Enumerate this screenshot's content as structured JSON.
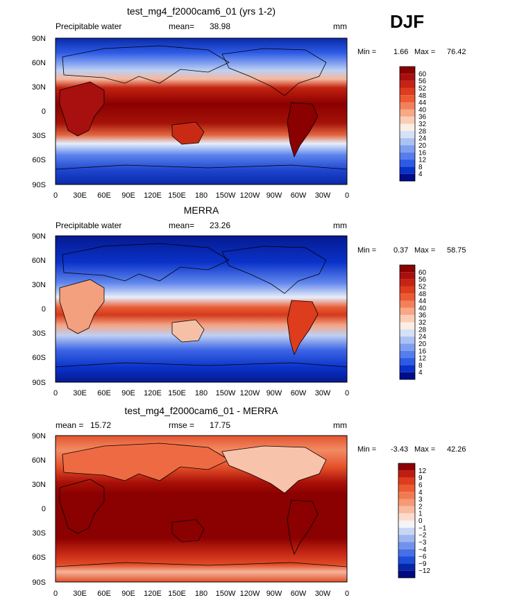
{
  "season_label": "DJF",
  "chart_data": [
    {
      "type": "heatmap",
      "title": "test_mg4_f2000cam6_01 (yrs 1-2)",
      "variable_label": "Precipitable water",
      "stat_label": "mean=",
      "stat_value": "38.98",
      "units": "mm",
      "min_label": "Min =",
      "min_value": "1.66",
      "max_label": "Max =",
      "max_value": "76.42",
      "y_ticks": [
        "90N",
        "60N",
        "30N",
        "0",
        "30S",
        "60S",
        "90S"
      ],
      "x_ticks": [
        "0",
        "30E",
        "60E",
        "90E",
        "120E",
        "150E",
        "180",
        "150W",
        "120W",
        "90W",
        "60W",
        "30W",
        "0"
      ],
      "colorbar_labels": [
        "60",
        "56",
        "52",
        "48",
        "44",
        "40",
        "36",
        "32",
        "28",
        "24",
        "20",
        "16",
        "12",
        "8",
        "4"
      ],
      "colorbar_colors": [
        "#8b0000",
        "#a81010",
        "#c62315",
        "#dd3c1d",
        "#ec5a34",
        "#f4805a",
        "#f8a886",
        "#fbcdb5",
        "#fbeee4",
        "#d6e1f6",
        "#aac2f3",
        "#7e9ff0",
        "#557ded",
        "#2d5be6",
        "#0a32c9",
        "#000c8a"
      ]
    },
    {
      "type": "heatmap",
      "title": "MERRA",
      "variable_label": "Precipitable water",
      "stat_label": "mean=",
      "stat_value": "23.26",
      "units": "mm",
      "min_label": "Min =",
      "min_value": "0.37",
      "max_label": "Max =",
      "max_value": "58.75",
      "y_ticks": [
        "90N",
        "60N",
        "30N",
        "0",
        "30S",
        "60S",
        "90S"
      ],
      "x_ticks": [
        "0",
        "30E",
        "60E",
        "90E",
        "120E",
        "150E",
        "180",
        "150W",
        "120W",
        "90W",
        "60W",
        "30W",
        "0"
      ],
      "colorbar_labels": [
        "60",
        "56",
        "52",
        "48",
        "44",
        "40",
        "36",
        "32",
        "28",
        "24",
        "20",
        "16",
        "12",
        "8",
        "4"
      ],
      "colorbar_colors": [
        "#8b0000",
        "#a81010",
        "#c62315",
        "#dd3c1d",
        "#ec5a34",
        "#f4805a",
        "#f8a886",
        "#fbcdb5",
        "#fbeee4",
        "#d6e1f6",
        "#aac2f3",
        "#7e9ff0",
        "#557ded",
        "#2d5be6",
        "#0a32c9",
        "#000c8a"
      ]
    },
    {
      "type": "heatmap",
      "title": "test_mg4_f2000cam6_01 - MERRA",
      "variable_label": "mean =",
      "stat_label": "",
      "stat_value": "15.72",
      "rmse_label": "rmse =",
      "rmse_value": "17.75",
      "units": "mm",
      "min_label": "Min =",
      "min_value": "-3.43",
      "max_label": "Max =",
      "max_value": "42.26",
      "y_ticks": [
        "90N",
        "60N",
        "30N",
        "0",
        "30S",
        "60S",
        "90S"
      ],
      "x_ticks": [
        "0",
        "30E",
        "60E",
        "90E",
        "120E",
        "150E",
        "180",
        "150W",
        "120W",
        "90W",
        "60W",
        "30W",
        "0"
      ],
      "colorbar_labels": [
        "12",
        "9",
        "6",
        "4",
        "3",
        "2",
        "1",
        "0",
        "−1",
        "−2",
        "−3",
        "−4",
        "−6",
        "−9",
        "−12"
      ],
      "colorbar_colors": [
        "#8b0000",
        "#c01c10",
        "#dd3c1d",
        "#ec5a34",
        "#f27a50",
        "#f69a75",
        "#f9bb9f",
        "#fbdccc",
        "#f4f4f7",
        "#c9d6f3",
        "#9db4f0",
        "#7192ec",
        "#4670e6",
        "#1d4ed8",
        "#0526a8",
        "#000a80"
      ]
    }
  ]
}
